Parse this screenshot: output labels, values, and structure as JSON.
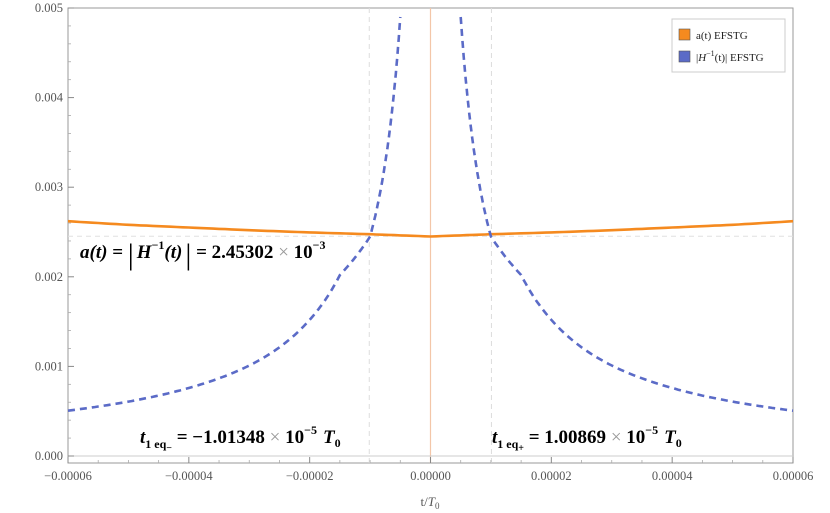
{
  "chart_data": {
    "type": "line",
    "xlabel_base": "t/",
    "xlabel_var": "T",
    "xlabel_sub": "0",
    "xlim": [
      -6e-05,
      6e-05
    ],
    "ylim": [
      0,
      0.005
    ],
    "x_ticks": [
      "-0.00006",
      "-0.00004",
      "-0.00002",
      "0.00000",
      "0.00002",
      "0.00004",
      "0.00006"
    ],
    "y_ticks": [
      "0.000",
      "0.001",
      "0.002",
      "0.003",
      "0.004",
      "0.005"
    ],
    "series": [
      {
        "name": "a(t) EFSTG",
        "color": "#f58a1f",
        "style": "solid",
        "x": [
          -6e-05,
          -5e-05,
          -4e-05,
          -3e-05,
          -2e-05,
          -1e-05,
          0,
          1e-05,
          2e-05,
          3e-05,
          4e-05,
          5e-05,
          6e-05
        ],
        "y": [
          0.00262,
          0.00258,
          0.00255,
          0.00252,
          0.002495,
          0.002475,
          0.00245,
          0.002475,
          0.002495,
          0.00252,
          0.00255,
          0.00258,
          0.00262
        ]
      },
      {
        "name_prefix": "|",
        "name_var": "H",
        "name_sup": "−1",
        "name_suffix": "(t)| EFSTG",
        "color": "#5b6bc7",
        "style": "dashed",
        "x": [
          -6e-05,
          -5e-05,
          -4e-05,
          -3e-05,
          -2e-05,
          -1.5e-05,
          -1e-05,
          -7.5e-06,
          -5e-06,
          5e-06,
          7.5e-06,
          1e-05,
          1.5e-05,
          2e-05,
          3e-05,
          4e-05,
          5e-05,
          6e-05
        ],
        "y": [
          0.000506,
          0.000607,
          0.000759,
          0.00101,
          0.00152,
          0.00202,
          0.00245,
          0.00327,
          0.0049,
          0.0049,
          0.00327,
          0.00245,
          0.00202,
          0.00152,
          0.00101,
          0.000759,
          0.000607,
          0.000506
        ]
      }
    ],
    "annotations": {
      "left_eq": {
        "sym": "t",
        "sub": "1 eq",
        "subsub": "−",
        "eq": " = −1.01348",
        "times": " × ",
        "base": "10",
        "exp": "−5",
        "unit": "T",
        "unit_sub": "0"
      },
      "right_eq": {
        "sym": "t",
        "sub": "1 eq",
        "subsub": "+",
        "eq": " = 1.00869",
        "times": " × ",
        "base": "10",
        "exp": "−5",
        "unit": "T",
        "unit_sub": "0"
      },
      "mid_eq": {
        "lhs": "a(t) = ",
        "bar": "|",
        "var": "H",
        "sup": "−1",
        "arg": "(t)",
        "eq": " = 2.45302",
        "times": " × ",
        "base": "10",
        "exp": "−3"
      }
    },
    "reference_lines": {
      "x": [
        -1.01348e-05,
        0,
        1.00869e-05
      ],
      "y": [
        0.00245302
      ]
    },
    "legend_position": "top-right"
  }
}
